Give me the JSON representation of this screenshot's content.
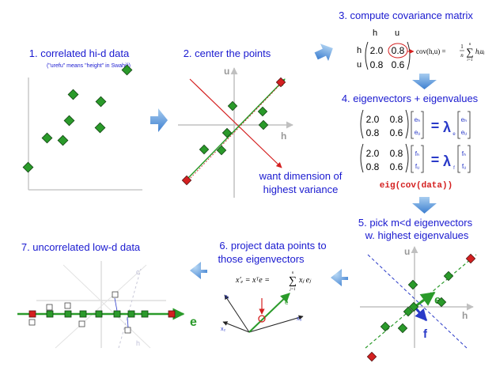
{
  "steps": {
    "s1": {
      "title": "1. correlated hi-d data",
      "note": "(\"urefu\" means \"height\" in Swahili)"
    },
    "s2": {
      "title": "2. center the points",
      "annotation_line1": "want dimension of",
      "annotation_line2": "highest variance",
      "axis_h": "h",
      "axis_u": "u"
    },
    "s3": {
      "title": "3. compute covariance matrix",
      "col_labels": [
        "h",
        "u"
      ],
      "row_labels": [
        "h",
        "u"
      ],
      "matrix": [
        "2.0",
        "0.8",
        "0.8",
        "0.6"
      ],
      "formula": "cov(h,u) = ",
      "frac_num": "1",
      "frac_den": "n",
      "sum_top": "n",
      "sum_bottom": "i=1",
      "sum_body": "hᵢuᵢ"
    },
    "s4": {
      "title": "4. eigenvectors + eigenvalues",
      "matrix": [
        "2.0",
        "0.8",
        "0.8",
        "0.6"
      ],
      "vec_e": [
        "eₕ",
        "eᵤ"
      ],
      "vec_f": [
        "fₕ",
        "fᵤ"
      ],
      "equals": "=",
      "lambda_e": "λ",
      "lambda_e_sub": "e",
      "lambda_f": "λ",
      "lambda_f_sub": "f",
      "code": "eig(cov(data))"
    },
    "s5": {
      "title_line1": "5. pick m<d eigenvectors",
      "title_line2": "w. highest eigenvalues",
      "axis_h": "h",
      "axis_u": "u",
      "vec_e": "e",
      "vec_f": "f"
    },
    "s6": {
      "title_line1": "6. project data points to",
      "title_line2": "those eigenvectors",
      "formula": "x′ₑ = xᵀe = ",
      "sum_top": "n",
      "sum_bottom": "j=1",
      "sum_body": "xⱼ eⱼ",
      "vec_e": "e"
    },
    "s7": {
      "title": "7. uncorrelated low-d data",
      "axis_e": "e"
    }
  },
  "colors": {
    "title": "#1a1ad0",
    "arrow": "#4a8ed8",
    "point": "#2a9a2a",
    "outlier": "#d42020",
    "red_line": "#d42020",
    "green_line": "#2a9a2a",
    "axis": "#c0c0c0"
  }
}
